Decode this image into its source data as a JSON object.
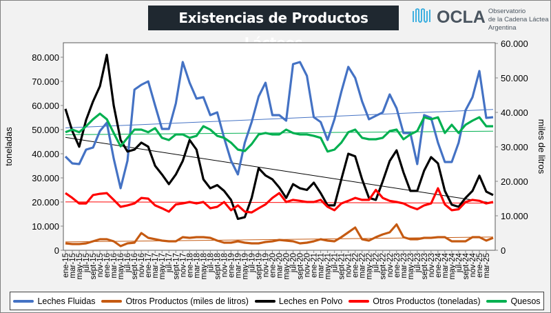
{
  "header": {
    "title": "Existencias de Productos Lácteos",
    "logo_name": "OCLA",
    "logo_line1": "Observatorio",
    "logo_line2": "de la Cadena Láctea",
    "logo_line3": "Argentina"
  },
  "chart_data": {
    "type": "line",
    "title": "Existencias de Productos Lácteos",
    "ylabel": "toneladas",
    "y2label": "miles de litros",
    "values_in_thousands": true,
    "ylim": [
      0,
      86
    ],
    "y2lim": [
      0,
      60.2
    ],
    "yticks": [
      "0",
      "10.000",
      "20.000",
      "30.000",
      "40.000",
      "50.000",
      "60.000",
      "70.000",
      "80.000"
    ],
    "y2ticks": [
      "0",
      "10.000",
      "20.000",
      "30.000",
      "40.000",
      "50.000",
      "60.000"
    ],
    "xticks": [
      "ene-15",
      "mar-15",
      "may-15",
      "jul-15",
      "sept-15",
      "nov-15",
      "ene-16",
      "mar-16",
      "may-16",
      "jul-16",
      "sept-16",
      "nov-16",
      "ene-17",
      "mar-17",
      "may-17",
      "jul-17",
      "sept-17",
      "nov-17",
      "ene-18",
      "mar-18",
      "may-18",
      "jul-18",
      "sept-18",
      "nov-18",
      "ene-19",
      "mar-19",
      "may-19",
      "jul-19",
      "sept-19",
      "nov-19",
      "ene-20",
      "mar-20",
      "may-20",
      "jul-20",
      "sept-20",
      "nov-20",
      "ene-21",
      "mar-21",
      "may-21",
      "jul-21",
      "sept-21",
      "nov-21",
      "ene-22",
      "mar-22",
      "may-22",
      "jul-22",
      "sept-22",
      "nov-22",
      "ene-23",
      "mar-23",
      "may-23",
      "jul-23",
      "sept-23",
      "nov-23",
      "ene-24",
      "mar-24",
      "may-24",
      "jul-24",
      "sept-24",
      "nov-24",
      "ene-25",
      "mar-25"
    ],
    "legend_position": "bottom",
    "trendlines": true,
    "series": [
      {
        "name": "Leches Fluidas",
        "axis": "right",
        "color": "#4472c4",
        "values": [
          27.2,
          25.2,
          25,
          29.2,
          29.8,
          34.6,
          37,
          26.6,
          18,
          26,
          46.6,
          48,
          49,
          42,
          35.2,
          35.2,
          42.6,
          54.6,
          48.6,
          44,
          44.4,
          39.2,
          40,
          32.6,
          26,
          22,
          31.2,
          37.2,
          44.6,
          48.6,
          39.2,
          39.2,
          37.6,
          54,
          54.6,
          50.6,
          38.6,
          37.2,
          32,
          38,
          46,
          53.2,
          50,
          43.2,
          38,
          39,
          40,
          45.2,
          41.2,
          34,
          34,
          25,
          39.2,
          38.4,
          31.2,
          25.6,
          25.6,
          31.2,
          40.6,
          44.4,
          52,
          38.4,
          38.6
        ]
      },
      {
        "name": "Otros Productos (miles de litros)",
        "axis": "right",
        "color": "#c55a11",
        "values": [
          2,
          1.8,
          1.8,
          2,
          2.6,
          3.2,
          3.2,
          2.6,
          1.2,
          2,
          2.2,
          5,
          3.6,
          3.2,
          2.8,
          2.6,
          2.6,
          3.8,
          3.6,
          3.8,
          3.8,
          3.6,
          2.8,
          2.2,
          2.2,
          2.6,
          2.2,
          2,
          2,
          2.4,
          2.6,
          3,
          2.8,
          2.6,
          2,
          2.2,
          2.6,
          3.2,
          2.8,
          2.6,
          3.8,
          5.2,
          6.6,
          3.2,
          2.8,
          3.8,
          4.6,
          5.2,
          7.5,
          3.8,
          3.2,
          3.2,
          3.6,
          3.6,
          3.8,
          3.8,
          2.6,
          2.6,
          2.6,
          3.8,
          3.8,
          2.8,
          3.6
        ]
      },
      {
        "name": "Leches en Polvo",
        "axis": "left",
        "color": "#000000",
        "values": [
          58.6,
          49.4,
          42.9,
          54,
          61.7,
          68,
          81,
          60,
          45.7,
          40.9,
          41.7,
          44.6,
          42.9,
          35,
          31.4,
          27.4,
          31.4,
          37,
          45.7,
          41.7,
          29.4,
          25.7,
          27,
          24.6,
          20.9,
          13,
          13.7,
          21.7,
          34,
          31,
          29.4,
          26,
          21.7,
          27.4,
          25.7,
          25,
          28,
          23.7,
          18.6,
          18.6,
          29.4,
          40,
          38.9,
          29.4,
          21.7,
          20.9,
          28.6,
          37,
          41.4,
          32.3,
          24.6,
          24.6,
          33,
          38.6,
          36,
          24.6,
          18.9,
          18,
          21.7,
          24.6,
          30.9,
          24.3,
          22.9
        ]
      },
      {
        "name": "Otros Productos (toneladas)",
        "axis": "left",
        "color": "#ff0000",
        "values": [
          23.7,
          21.7,
          19.4,
          19.4,
          22.9,
          23.4,
          23.7,
          20.9,
          18,
          18.6,
          19.4,
          21.7,
          21.4,
          18.6,
          17.4,
          16,
          19,
          19.4,
          20,
          19.4,
          20,
          17.4,
          18,
          20,
          16.6,
          18.6,
          16,
          15.7,
          17.4,
          19,
          21.7,
          23.7,
          20,
          20.9,
          20.5,
          20,
          20,
          20.9,
          18,
          16.6,
          19.4,
          20.5,
          21.7,
          20.9,
          20.9,
          25,
          21.7,
          20.5,
          20,
          19.4,
          18,
          17,
          18.6,
          19.4,
          25.7,
          19,
          16.6,
          17,
          20,
          20.9,
          20.5,
          19.4,
          20
        ]
      },
      {
        "name": "Quesos",
        "axis": "left",
        "color": "#00b050",
        "values": [
          48.9,
          50,
          48.9,
          51.4,
          54.3,
          56.6,
          54.3,
          48.6,
          43.1,
          46.6,
          50,
          50,
          48.9,
          50.6,
          46.6,
          45.7,
          48,
          48,
          46.6,
          47.4,
          51.4,
          50,
          47.4,
          46.6,
          44.6,
          41.7,
          41.1,
          44,
          48,
          48.6,
          48,
          48,
          50,
          48.6,
          48,
          48,
          47.4,
          46.6,
          40.9,
          41.7,
          44.6,
          48.9,
          50,
          46.6,
          46,
          46,
          46.6,
          49.4,
          50,
          46,
          48,
          49.4,
          55.1,
          54.3,
          55.1,
          48.6,
          52,
          48.6,
          52,
          53.7,
          55.1,
          51.4,
          51.4
        ]
      }
    ]
  }
}
